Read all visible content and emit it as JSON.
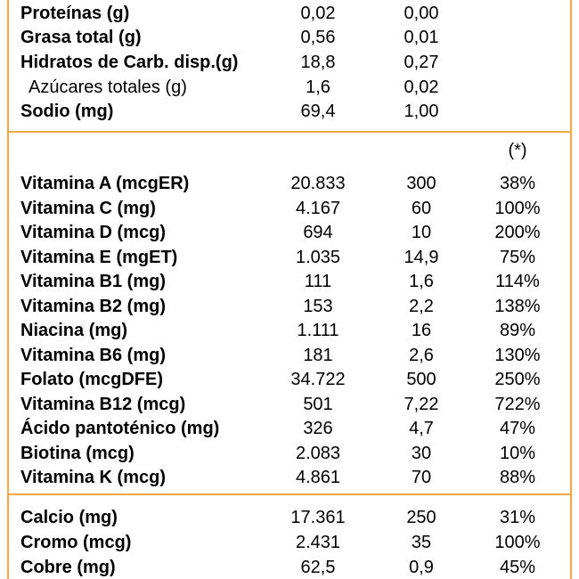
{
  "colors": {
    "border": "#f5a742",
    "text": "#000000",
    "background": "#ffffff"
  },
  "macros": [
    {
      "name": "Proteínas (g)",
      "v1": "0,02",
      "v2": "0,00",
      "bold": true
    },
    {
      "name": "Grasa total (g)",
      "v1": "0,56",
      "v2": "0,01",
      "bold": true
    },
    {
      "name": "Hidratos de Carb. disp.(g)",
      "v1": "18,8",
      "v2": "0,27",
      "bold": true
    },
    {
      "name": "Azúcares totales (g)",
      "v1": "1,6",
      "v2": "0,02",
      "bold": false
    },
    {
      "name": "Sodio (mg)",
      "v1": "69,4",
      "v2": "1,00",
      "bold": true
    }
  ],
  "footnote_marker": "(*)",
  "vitamins": [
    {
      "name": "Vitamina A (mcgER)",
      "v1": "20.833",
      "v2": "300",
      "pct": "38%"
    },
    {
      "name": "Vitamina C (mg)",
      "v1": "4.167",
      "v2": "60",
      "pct": "100%"
    },
    {
      "name": "Vitamina D (mcg)",
      "v1": "694",
      "v2": "10",
      "pct": "200%"
    },
    {
      "name": "Vitamina E (mgET)",
      "v1": "1.035",
      "v2": "14,9",
      "pct": "75%"
    },
    {
      "name": "Vitamina B1 (mg)",
      "v1": "111",
      "v2": "1,6",
      "pct": "114%"
    },
    {
      "name": "Vitamina B2 (mg)",
      "v1": "153",
      "v2": "2,2",
      "pct": "138%"
    },
    {
      "name": "Niacina (mg)",
      "v1": "1.111",
      "v2": "16",
      "pct": "89%"
    },
    {
      "name": "Vitamina B6 (mg)",
      "v1": "181",
      "v2": "2,6",
      "pct": "130%"
    },
    {
      "name": "Folato (mcgDFE)",
      "v1": "34.722",
      "v2": "500",
      "pct": "250%"
    },
    {
      "name": "Vitamina B12 (mcg)",
      "v1": "501",
      "v2": "7,22",
      "pct": "722%"
    },
    {
      "name": "Ácido pantoténico (mg)",
      "v1": "326",
      "v2": "4,7",
      "pct": "47%"
    },
    {
      "name": "Biotina (mcg)",
      "v1": "2.083",
      "v2": "30",
      "pct": "10%"
    },
    {
      "name": "Vitamina K (mcg)",
      "v1": "4.861",
      "v2": "70",
      "pct": "88%"
    }
  ],
  "minerals": [
    {
      "name": "Calcio (mg)",
      "v1": "17.361",
      "v2": "250",
      "pct": "31%"
    },
    {
      "name": "Cromo (mcg)",
      "v1": "2.431",
      "v2": "35",
      "pct": "100%"
    },
    {
      "name": "Cobre (mg)",
      "v1": "62,5",
      "v2": "0,9",
      "pct": "45%"
    }
  ]
}
